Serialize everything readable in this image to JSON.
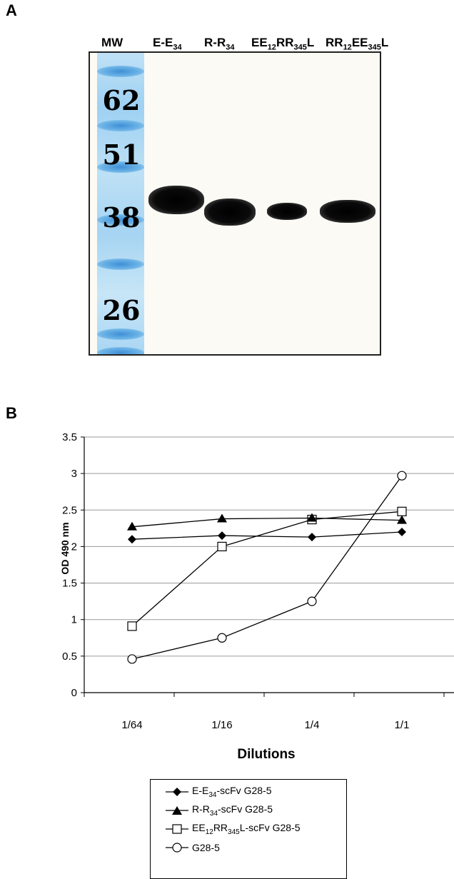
{
  "figure": {
    "panel_a_label": "A",
    "panel_b_label": "B"
  },
  "blot": {
    "lanes": [
      {
        "parts": [
          [
            "E-E",
            ""
          ],
          [
            "34",
            "sub"
          ]
        ]
      },
      {
        "parts": [
          [
            "R-R",
            ""
          ],
          [
            "34",
            "sub"
          ]
        ]
      },
      {
        "parts": [
          [
            "EE",
            ""
          ],
          [
            "12",
            "sub"
          ],
          [
            "RR",
            ""
          ],
          [
            "345",
            "sub"
          ],
          [
            "L",
            ""
          ]
        ]
      },
      {
        "parts": [
          [
            "RR",
            ""
          ],
          [
            "12",
            "sub"
          ],
          [
            "EE",
            ""
          ],
          [
            "345",
            "sub"
          ],
          [
            "L",
            ""
          ]
        ]
      }
    ],
    "mw_header": "MW",
    "mw_markers": [
      "62",
      "51",
      "38",
      "26"
    ]
  },
  "chart_data": {
    "type": "line",
    "categories": [
      "1/64",
      "1/16",
      "1/4",
      "1/1"
    ],
    "xlabel": "Dilutions",
    "ylabel": "OD 490 nm",
    "ylim": [
      0,
      3.5
    ],
    "yticks": [
      "0",
      "0.5",
      "1",
      "1.5",
      "2",
      "2.5",
      "3",
      "3.5"
    ],
    "grid": true,
    "legend_position": "bottom",
    "series": [
      {
        "name": "E-E34-scFv G28-5",
        "name_parts": [
          [
            "E-E",
            ""
          ],
          [
            "34",
            "sub"
          ],
          [
            "-scFv G28-5",
            ""
          ]
        ],
        "marker": "diamond-filled",
        "values": [
          2.1,
          2.15,
          2.13,
          2.2
        ]
      },
      {
        "name": "R-R34-scFv G28-5",
        "name_parts": [
          [
            "R-R",
            ""
          ],
          [
            "34",
            "sub"
          ],
          [
            "-scFv G28-5",
            ""
          ]
        ],
        "marker": "triangle-filled",
        "values": [
          2.27,
          2.38,
          2.39,
          2.36
        ]
      },
      {
        "name": "EE12RR345L-scFv G28-5",
        "name_parts": [
          [
            "EE",
            ""
          ],
          [
            "12",
            "sub"
          ],
          [
            "RR",
            ""
          ],
          [
            "345",
            "sub"
          ],
          [
            "L-scFv G28-5",
            ""
          ]
        ],
        "marker": "square-open",
        "values": [
          0.91,
          2.0,
          2.37,
          2.48
        ]
      },
      {
        "name": "G28-5",
        "name_parts": [
          [
            "G28-5",
            ""
          ]
        ],
        "marker": "circle-open",
        "values": [
          0.46,
          0.75,
          1.25,
          2.97
        ]
      }
    ]
  }
}
